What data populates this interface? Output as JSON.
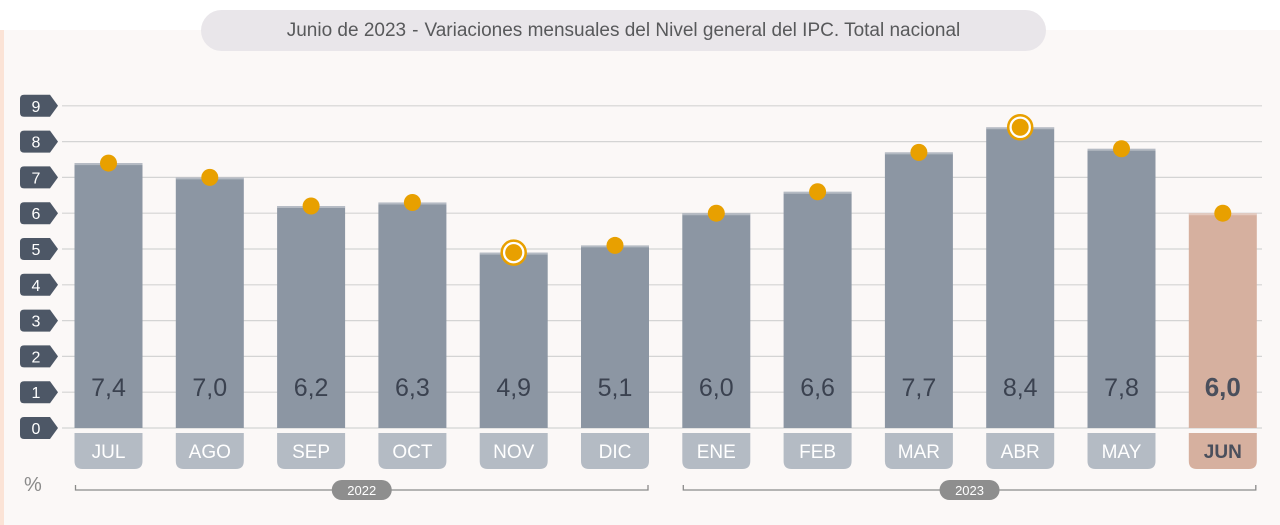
{
  "title": {
    "period": "Junio de 2023",
    "separator": "-",
    "text": "Variaciones mensuales del Nivel general del IPC. Total nacional"
  },
  "unit_label": "%",
  "colors": {
    "bar": "#8c96a3",
    "bar_highlight": "#d6b09f",
    "dot": "#e8a000",
    "axis_badge": "#4d5766",
    "month_label_bg": "#b4bbc4",
    "month_label_bg_highlight": "#d6b09f",
    "year_badge": "#8e8e8e"
  },
  "chart_data": {
    "type": "bar",
    "categories": [
      "JUL",
      "AGO",
      "SEP",
      "OCT",
      "NOV",
      "DIC",
      "ENE",
      "FEB",
      "MAR",
      "ABR",
      "MAY",
      "JUN"
    ],
    "values": [
      7.4,
      7.0,
      6.2,
      6.3,
      4.9,
      5.1,
      6.0,
      6.6,
      7.7,
      8.4,
      7.8,
      6.0
    ],
    "value_labels": [
      "7,4",
      "7,0",
      "6,2",
      "6,3",
      "4,9",
      "5,1",
      "6,0",
      "6,6",
      "7,7",
      "8,4",
      "7,8",
      "6,0"
    ],
    "highlight_index": 11,
    "ringed_indices": [
      4,
      9
    ],
    "yticks": [
      "0",
      "1",
      "2",
      "3",
      "4",
      "5",
      "6",
      "7",
      "8",
      "9"
    ],
    "ylim": [
      0,
      9
    ],
    "grid": true,
    "year_groups": [
      {
        "label": "2022",
        "start": 0,
        "end": 5
      },
      {
        "label": "2023",
        "start": 6,
        "end": 11
      }
    ]
  }
}
